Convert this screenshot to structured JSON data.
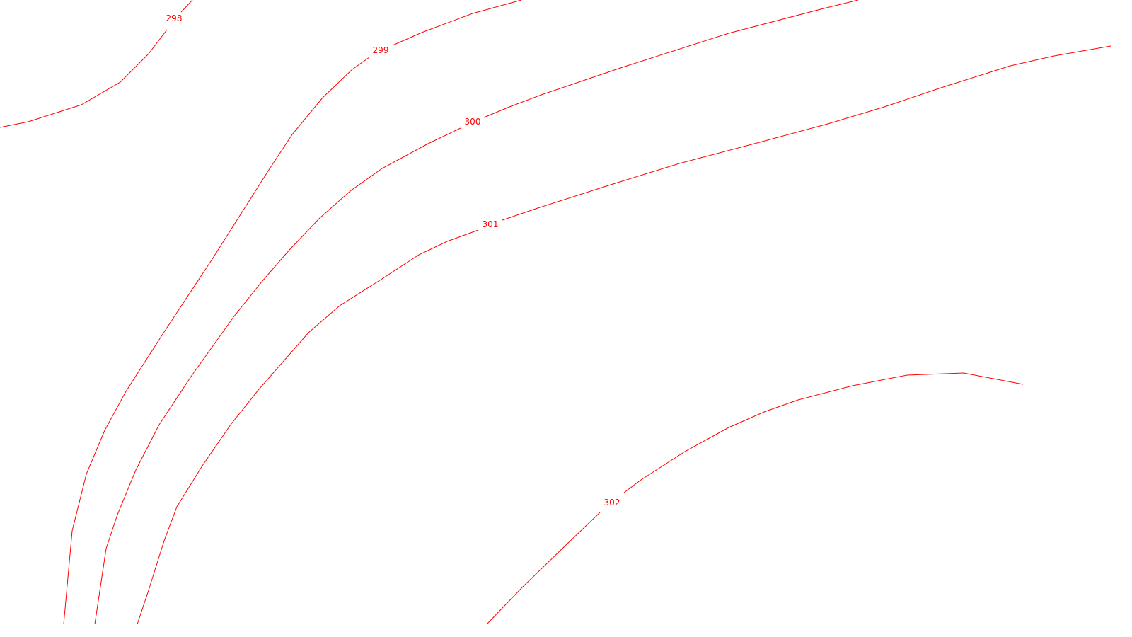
{
  "map": {
    "contour_color": "#ff0000",
    "background_color": "#ffffff",
    "contours": [
      {
        "label": "298"
      },
      {
        "label": "299"
      },
      {
        "label": "300"
      },
      {
        "label": "301"
      },
      {
        "label": "302"
      }
    ]
  }
}
